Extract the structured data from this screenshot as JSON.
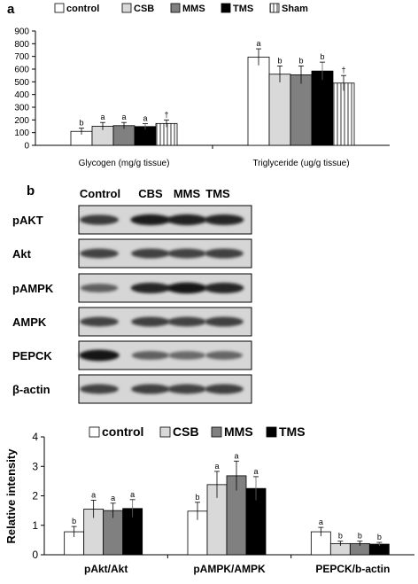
{
  "chart_data": [
    {
      "type": "bar",
      "panel": "a",
      "categories": [
        "Glycogen (mg/g tissue)",
        "Triglyceride (ug/g tissue)"
      ],
      "series": [
        {
          "name": "control",
          "values": [
            110,
            695
          ],
          "errors": [
            25,
            65
          ],
          "letters": [
            "b",
            "a"
          ],
          "fill": "#ffffff"
        },
        {
          "name": "CSB",
          "values": [
            150,
            560
          ],
          "errors": [
            30,
            65
          ],
          "letters": [
            "a",
            "b"
          ],
          "fill": "#d9d9d9"
        },
        {
          "name": "MMS",
          "values": [
            155,
            555
          ],
          "errors": [
            25,
            70
          ],
          "letters": [
            "a",
            "b"
          ],
          "fill": "#808080"
        },
        {
          "name": "TMS",
          "values": [
            148,
            585
          ],
          "errors": [
            22,
            70
          ],
          "letters": [
            "a",
            "b"
          ],
          "fill": "#000000"
        },
        {
          "name": "Sham",
          "values": [
            172,
            490
          ],
          "errors": [
            28,
            60
          ],
          "letters": [
            "†",
            "†"
          ],
          "fill": "striped"
        }
      ],
      "ylim": [
        0,
        900
      ],
      "yticks": [
        0,
        100,
        200,
        300,
        400,
        500,
        600,
        700,
        800,
        900
      ],
      "grid": false,
      "legend_position": "top"
    },
    {
      "type": "bar",
      "panel": "",
      "categories": [
        "pAkt/Akt",
        "pAMPK/AMPK",
        "PEPCK/b-actin"
      ],
      "series": [
        {
          "name": "control",
          "values": [
            0.78,
            1.48,
            0.78
          ],
          "errors": [
            0.18,
            0.3,
            0.15
          ],
          "letters": [
            "b",
            "b",
            "a"
          ],
          "fill": "#ffffff"
        },
        {
          "name": "CSB",
          "values": [
            1.55,
            2.38,
            0.38
          ],
          "errors": [
            0.3,
            0.45,
            0.08
          ],
          "letters": [
            "a",
            "a",
            "b"
          ],
          "fill": "#d9d9d9"
        },
        {
          "name": "MMS",
          "values": [
            1.5,
            2.68,
            0.38
          ],
          "errors": [
            0.25,
            0.5,
            0.08
          ],
          "letters": [
            "a",
            "a",
            "b"
          ],
          "fill": "#808080"
        },
        {
          "name": "TMS",
          "values": [
            1.57,
            2.25,
            0.36
          ],
          "errors": [
            0.3,
            0.4,
            0.06
          ],
          "letters": [
            "a",
            "a",
            "b"
          ],
          "fill": "#000000"
        }
      ],
      "ylabel": "Relative intensity",
      "ylim": [
        0,
        4
      ],
      "yticks": [
        0,
        1,
        2,
        3,
        4
      ],
      "grid": false,
      "legend_position": "top"
    }
  ],
  "blot": {
    "panel": "b",
    "lanes": [
      "Control",
      "CBS",
      "MMS",
      "TMS"
    ],
    "rows": [
      "pAKT",
      "Akt",
      "pAMPK",
      "AMPK",
      "PEPCK",
      "β-actin"
    ],
    "band_intensity": [
      [
        0.75,
        0.9,
        0.88,
        0.85
      ],
      [
        0.7,
        0.72,
        0.7,
        0.72
      ],
      [
        0.55,
        0.85,
        0.92,
        0.85
      ],
      [
        0.7,
        0.72,
        0.7,
        0.72
      ],
      [
        0.95,
        0.55,
        0.5,
        0.52
      ],
      [
        0.7,
        0.72,
        0.7,
        0.72
      ]
    ]
  }
}
